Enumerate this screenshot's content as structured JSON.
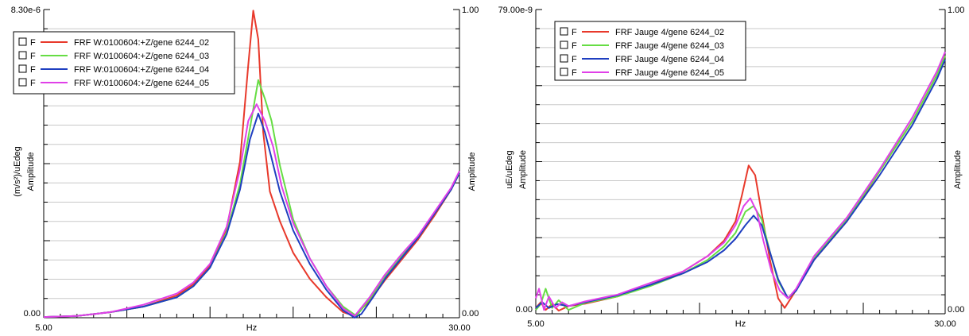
{
  "colors": {
    "s02": "#e8392b",
    "s03": "#66dd44",
    "s04": "#1f3fc0",
    "s05": "#e040e8"
  },
  "chart_data": [
    {
      "type": "line",
      "x_tick_labels": [
        "5.00",
        "30.00"
      ],
      "xlabel": "Hz",
      "xlim": [
        5,
        30
      ],
      "ylabel_left": "(m/s²)/uEdeg",
      "ylabel_left_2": "Amplitude",
      "ylabel_right": "Amplitude",
      "y_left_top_label": "8.30e-6",
      "y_left_bottom_label": "0.00",
      "y_right_top_label": "1.00",
      "y_right_bottom_label": "0.00",
      "ylim": [
        0,
        8.3e-06
      ],
      "legend_placement": "top-left",
      "series": [
        {
          "name": "FRF W:0100604:+Z/gene  6244_02",
          "legend_box": "F",
          "color_key": "s02",
          "x": [
            5,
            7,
            9,
            11,
            13,
            14,
            15,
            16,
            16.8,
            17.3,
            17.6,
            17.9,
            18.2,
            18.6,
            19.2,
            20,
            21,
            22,
            23,
            23.7,
            24.6,
            25.5,
            26.5,
            27.5,
            28.5,
            29.5,
            30
          ],
          "y": [
            2e-08,
            5e-08,
            1.5e-07,
            3e-07,
            6e-07,
            9e-07,
            1.4e-06,
            2.4e-06,
            4.2e-06,
            6.8e-06,
            8.27e-06,
            7.5e-06,
            5e-06,
            3.4e-06,
            2.6e-06,
            1.75e-06,
            1.05e-06,
            5.5e-07,
            1.5e-07,
            5e-08,
            4.5e-07,
            1e-06,
            1.55e-06,
            2.1e-06,
            2.75e-06,
            3.45e-06,
            3.9e-06
          ]
        },
        {
          "name": "FRF W:0100604:+Z/gene  6244_03",
          "legend_box": "F",
          "color_key": "s03",
          "x": [
            5,
            7,
            9,
            11,
            13,
            14,
            15,
            16,
            16.8,
            17.4,
            17.9,
            18.3,
            18.7,
            19.2,
            20,
            21,
            22,
            23,
            23.8,
            24.6,
            25.5,
            26.5,
            27.5,
            28.5,
            29.5,
            30
          ],
          "y": [
            2e-08,
            5e-08,
            1.5e-07,
            3e-07,
            5.5e-07,
            8.5e-07,
            1.35e-06,
            2.3e-06,
            3.6e-06,
            5.1e-06,
            6.4e-06,
            5.9e-06,
            5.3e-06,
            4.1e-06,
            2.65e-06,
            1.6e-06,
            8.5e-07,
            3e-07,
            5e-08,
            5e-07,
            1.1e-06,
            1.65e-06,
            2.15e-06,
            2.8e-06,
            3.45e-06,
            3.9e-06
          ]
        },
        {
          "name": "FRF W:0100604:+Z/gene  6244_04",
          "legend_box": "F",
          "color_key": "s04",
          "x": [
            5,
            7,
            9,
            11,
            13,
            14,
            15,
            16,
            16.8,
            17.4,
            17.9,
            18.3,
            18.7,
            19.2,
            20,
            21,
            22,
            23,
            23.7,
            24.1,
            24.8,
            25.6,
            26.5,
            27.5,
            28.5,
            29.5,
            30
          ],
          "y": [
            2e-08,
            5e-08,
            1.5e-07,
            3e-07,
            5.5e-07,
            8.5e-07,
            1.35e-06,
            2.25e-06,
            3.45e-06,
            4.8e-06,
            5.5e-06,
            5e-06,
            4.3e-06,
            3.4e-06,
            2.35e-06,
            1.45e-06,
            7.5e-07,
            2e-07,
            0.0,
            1e-07,
            5.5e-07,
            1.1e-06,
            1.6e-06,
            2.15e-06,
            2.8e-06,
            3.45e-06,
            3.9e-06
          ]
        },
        {
          "name": "FRF W:0100604:+Z/gene  6244_05",
          "legend_box": "F",
          "color_key": "s05",
          "x": [
            5,
            7,
            9,
            11,
            13,
            14,
            15,
            16,
            16.8,
            17.3,
            17.8,
            18.3,
            18.8,
            19.3,
            20,
            21,
            22,
            23,
            23.7,
            24.6,
            25.5,
            26.5,
            27.5,
            28.5,
            29.5,
            30
          ],
          "y": [
            2e-08,
            5e-08,
            1.5e-07,
            3.5e-07,
            6.5e-07,
            9.5e-07,
            1.45e-06,
            2.45e-06,
            4e-06,
            5.3e-06,
            5.75e-06,
            5.3e-06,
            4.6e-06,
            3.55e-06,
            2.55e-06,
            1.6e-06,
            8.5e-07,
            2.5e-07,
            5e-08,
            5.5e-07,
            1.15e-06,
            1.7e-06,
            2.2e-06,
            2.85e-06,
            3.5e-06,
            3.95e-06
          ]
        }
      ]
    },
    {
      "type": "line",
      "x_tick_labels": [
        "5.00",
        "30.00"
      ],
      "xlabel": "Hz",
      "xlim": [
        5,
        30
      ],
      "ylabel_left": "uE/uEdeg",
      "ylabel_left_2": "Amplitude",
      "ylabel_right": "Amplitude",
      "y_left_top_label": "79.00e-9",
      "y_left_bottom_label": "0.00",
      "y_right_top_label": "1.00",
      "y_right_bottom_label": "0.00",
      "ylim": [
        0,
        7.9e-08
      ],
      "legend_placement": "top-left",
      "series": [
        {
          "name": "FRF Jauge 4/gene  6244_02",
          "legend_box": "F",
          "color_key": "s02",
          "x": [
            5,
            5.3,
            5.6,
            6,
            6.4,
            7,
            8,
            10,
            12,
            14,
            15.5,
            16.5,
            17.2,
            17.6,
            18,
            18.4,
            18.8,
            19.3,
            19.8,
            20.2,
            20.8,
            22,
            24,
            26,
            28,
            29.5,
            30
          ],
          "y": [
            1.5e-09,
            3e-09,
            1e-09,
            2.5e-09,
            8e-10,
            2e-09,
            2.6e-09,
            4.5e-09,
            7.5e-09,
            1.1e-08,
            1.5e-08,
            1.9e-08,
            2.4e-08,
            3.1e-08,
            3.85e-08,
            3.6e-08,
            2.6e-08,
            1.4e-08,
            4e-09,
            1.5e-09,
            5.5e-09,
            1.4e-08,
            2.4e-08,
            3.7e-08,
            5e-08,
            6.2e-08,
            6.7e-08
          ]
        },
        {
          "name": "FRF Jauge 4/gene  6244_03",
          "legend_box": "F",
          "color_key": "s03",
          "x": [
            5,
            5.3,
            5.6,
            6,
            6.4,
            7,
            8,
            10,
            12,
            14,
            15.5,
            16.5,
            17.2,
            17.8,
            18.3,
            18.8,
            19.3,
            19.8,
            20.4,
            20.9,
            22,
            24,
            26,
            28,
            29.5,
            30
          ],
          "y": [
            1e-09,
            2.5e-09,
            6.5e-09,
            1.5e-09,
            3.5e-09,
            1e-09,
            2.8e-09,
            4.5e-09,
            7.2e-09,
            1.05e-08,
            1.4e-08,
            1.75e-08,
            2.1e-08,
            2.65e-08,
            2.8e-08,
            2.45e-08,
            1.6e-08,
            8.5e-09,
            4e-09,
            6e-09,
            1.45e-08,
            2.45e-08,
            3.7e-08,
            5e-08,
            6.2e-08,
            6.7e-08
          ]
        },
        {
          "name": "FRF Jauge 4/gene  6244_04",
          "legend_box": "F",
          "color_key": "s04",
          "x": [
            5,
            5.4,
            5.8,
            6.3,
            7,
            8,
            10,
            12,
            14,
            15.5,
            16.5,
            17.2,
            17.8,
            18.3,
            18.8,
            19.3,
            19.8,
            20.4,
            20.9,
            22,
            24,
            26,
            28,
            29.5,
            30
          ],
          "y": [
            1.5e-09,
            3e-09,
            1.5e-09,
            2.5e-09,
            2e-09,
            3e-09,
            4.8e-09,
            7.5e-09,
            1.05e-08,
            1.35e-08,
            1.65e-08,
            1.95e-08,
            2.3e-08,
            2.55e-08,
            2.3e-08,
            1.6e-08,
            9e-09,
            4e-09,
            6e-09,
            1.4e-08,
            2.4e-08,
            3.6e-08,
            4.9e-08,
            6.1e-08,
            6.6e-08
          ]
        },
        {
          "name": "FRF Jauge 4/gene  6244_05",
          "legend_box": "F",
          "color_key": "s05",
          "x": [
            5,
            5.2,
            5.5,
            5.8,
            6.2,
            6.6,
            7,
            8,
            10,
            12,
            14,
            15.5,
            16.5,
            17.2,
            17.7,
            18.1,
            18.5,
            18.9,
            19.4,
            19.9,
            20.4,
            20.9,
            22,
            24,
            26,
            28,
            29.5,
            30
          ],
          "y": [
            4e-09,
            6.5e-09,
            1e-09,
            4.5e-09,
            1.5e-09,
            3e-09,
            2e-09,
            3.2e-09,
            5e-09,
            8e-09,
            1.1e-08,
            1.5e-08,
            1.85e-08,
            2.3e-08,
            2.8e-08,
            3e-08,
            2.65e-08,
            1.9e-08,
            1.1e-08,
            6e-09,
            4e-09,
            6.5e-09,
            1.5e-08,
            2.5e-08,
            3.75e-08,
            5.1e-08,
            6.3e-08,
            6.8e-08
          ]
        }
      ]
    }
  ]
}
